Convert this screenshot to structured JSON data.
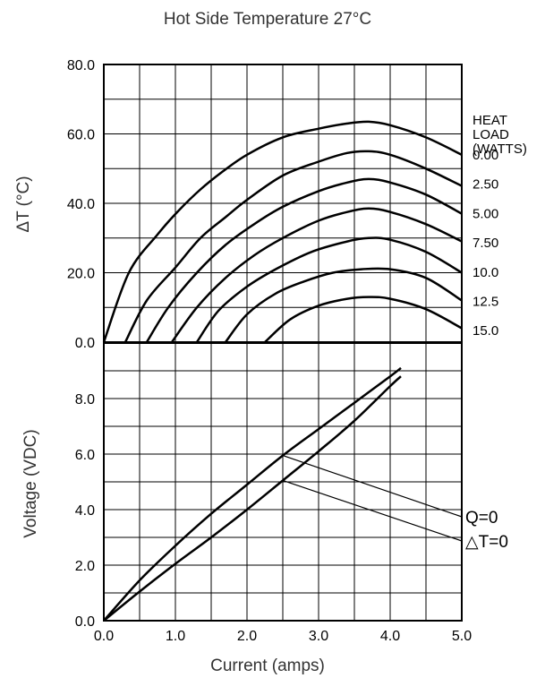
{
  "chart_data": [
    {
      "type": "line",
      "title": "Hot Side Temperature 27°C",
      "ylabel": "ΔT (°C)",
      "xlim": [
        0,
        5
      ],
      "ylim": [
        0,
        80
      ],
      "y_ticks": [
        "0.0",
        "20.0",
        "40.0",
        "60.0",
        "80.0"
      ],
      "grid": true,
      "legend_title": [
        "HEAT",
        "LOAD",
        "(WATTS)"
      ],
      "legend_placement": "right",
      "series": [
        {
          "name": "0.00",
          "x": [
            0,
            0.35,
            0.75,
            1.05,
            1.35,
            1.65,
            2.0,
            2.5,
            3.0,
            3.4,
            3.7,
            4.0,
            4.5,
            5.0
          ],
          "y": [
            0,
            20,
            31,
            38,
            44,
            49,
            54,
            59,
            61.5,
            63,
            63.5,
            62.5,
            59,
            54
          ]
        },
        {
          "name": "2.50",
          "x": [
            0.3,
            0.6,
            1.0,
            1.35,
            1.7,
            2.0,
            2.5,
            3.0,
            3.4,
            3.7,
            4.0,
            4.5,
            5.0
          ],
          "y": [
            0,
            12,
            21.5,
            30,
            36,
            41,
            48,
            52,
            54.5,
            55,
            54,
            50,
            45
          ]
        },
        {
          "name": "5.00",
          "x": [
            0.6,
            0.9,
            1.3,
            1.7,
            2.1,
            2.5,
            3.0,
            3.4,
            3.7,
            4.0,
            4.5,
            5.0
          ],
          "y": [
            0,
            10,
            20,
            28,
            34,
            39,
            43.5,
            46,
            47,
            46,
            42.5,
            37
          ]
        },
        {
          "name": "7.50",
          "x": [
            0.95,
            1.3,
            1.7,
            2.1,
            2.5,
            3.0,
            3.4,
            3.7,
            4.0,
            4.5,
            5.0
          ],
          "y": [
            0,
            10,
            18.5,
            25,
            30,
            35,
            37.5,
            38.5,
            37.5,
            34,
            29
          ]
        },
        {
          "name": "10.0",
          "x": [
            1.3,
            1.6,
            2.0,
            2.4,
            2.9,
            3.4,
            3.7,
            4.0,
            4.5,
            5.0
          ],
          "y": [
            0,
            9,
            16,
            21,
            26,
            29,
            30,
            29.5,
            26,
            20
          ]
        },
        {
          "name": "12.5",
          "x": [
            1.7,
            2.0,
            2.4,
            2.8,
            3.2,
            3.6,
            4.0,
            4.5,
            5.0
          ],
          "y": [
            0,
            8,
            14,
            17.5,
            20,
            21,
            21,
            18.5,
            12
          ]
        },
        {
          "name": "15.0",
          "x": [
            2.25,
            2.6,
            3.0,
            3.4,
            3.7,
            4.0,
            4.5,
            5.0
          ],
          "y": [
            0,
            6.5,
            10.5,
            12.5,
            13,
            12.5,
            9.5,
            4
          ]
        }
      ]
    },
    {
      "type": "line",
      "xlabel": "Current (amps)",
      "ylabel": "Voltage (VDC)",
      "xlim": [
        0,
        5
      ],
      "ylim": [
        0,
        10
      ],
      "x_ticks": [
        "0.0",
        "1.0",
        "2.0",
        "3.0",
        "4.0",
        "5.0"
      ],
      "y_ticks": [
        "0.0",
        "2.0",
        "4.0",
        "6.0",
        "8.0"
      ],
      "grid": true,
      "series": [
        {
          "name": "Q=0",
          "x": [
            0,
            0.5,
            1.0,
            1.5,
            2.0,
            2.5,
            3.0,
            3.5,
            4.0,
            4.15
          ],
          "y": [
            0,
            1.45,
            2.7,
            3.85,
            4.9,
            5.95,
            6.9,
            7.85,
            8.8,
            9.1
          ]
        },
        {
          "name": "△T=0",
          "x": [
            0,
            0.5,
            1.0,
            1.5,
            2.0,
            2.5,
            3.0,
            3.5,
            4.0,
            4.15
          ],
          "y": [
            0,
            1.05,
            2.05,
            3.0,
            4.0,
            5.05,
            6.1,
            7.2,
            8.45,
            8.8
          ]
        }
      ],
      "annotations": [
        {
          "text": "Q=0",
          "points_to": {
            "x": 2.5,
            "y": 5.95
          }
        },
        {
          "text": "△T=0",
          "points_to": {
            "x": 2.5,
            "y": 5.05
          }
        }
      ]
    }
  ]
}
